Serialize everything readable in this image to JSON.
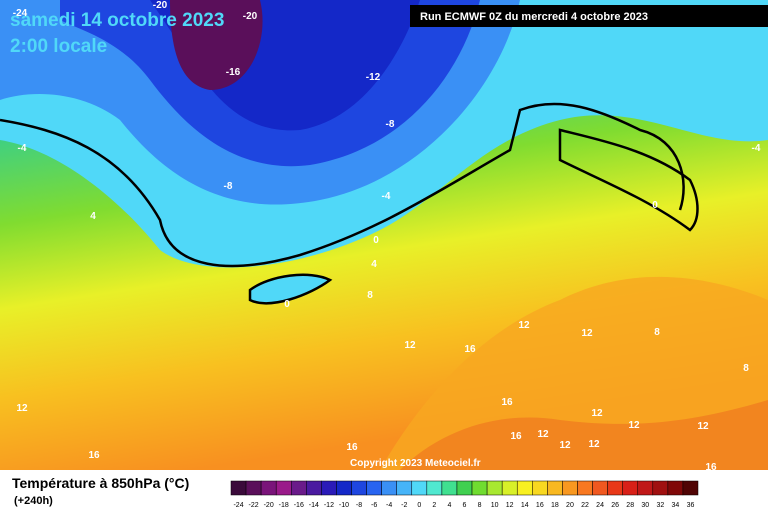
{
  "header": {
    "date": "samedi 14 octobre 2023",
    "time": "2:00 locale",
    "run": "Run ECMWF 0Z du mercredi 4 octobre 2023"
  },
  "map": {
    "contour_labels": [
      -24,
      -20,
      -20,
      -16,
      -12,
      -8,
      -8,
      -4,
      -4,
      -4,
      4,
      0,
      4,
      0,
      8,
      0,
      12,
      16,
      12,
      12,
      8,
      8,
      12,
      16,
      12,
      12,
      16,
      12,
      12,
      12,
      12,
      16,
      16,
      16
    ],
    "copyright": "Copyright 2023 Meteociel.fr"
  },
  "footer": {
    "title": "Température à 850hPa (°C)",
    "lead": "(+240h)"
  },
  "legend": {
    "labels": [
      -24,
      -22,
      -20,
      -18,
      -16,
      -14,
      -12,
      -10,
      -8,
      -6,
      -4,
      -2,
      0,
      2,
      4,
      6,
      8,
      10,
      12,
      14,
      16,
      18,
      20,
      22,
      24,
      26,
      28,
      30,
      32,
      34,
      36
    ],
    "colors": [
      "#3a0a3a",
      "#5a0f5a",
      "#7a147a",
      "#9a1a8a",
      "#6a1a8a",
      "#4a1aa0",
      "#2a1ab8",
      "#1428c8",
      "#1e46e0",
      "#2864f0",
      "#3a90f5",
      "#46b4f8",
      "#50d8f8",
      "#50e8d0",
      "#40e090",
      "#40d050",
      "#70dc30",
      "#a8e830",
      "#d8f028",
      "#f8f020",
      "#f8d820",
      "#f8b820",
      "#f89820",
      "#f87820",
      "#f05820",
      "#e83818",
      "#d82018",
      "#c01818",
      "#a01010",
      "#800808",
      "#500404"
    ]
  }
}
